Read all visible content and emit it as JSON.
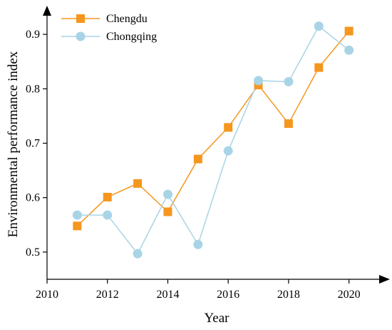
{
  "chart_data": {
    "type": "line",
    "title": "",
    "xlabel": "Year",
    "ylabel": "Environmental performance index",
    "xlim": [
      2010,
      2021
    ],
    "ylim": [
      0.45,
      0.95
    ],
    "xticks": [
      2010,
      2012,
      2014,
      2016,
      2018,
      2020
    ],
    "yticks": [
      0.5,
      0.6,
      0.7,
      0.8,
      0.9
    ],
    "xtick_labels": [
      "2010",
      "2012",
      "2014",
      "2016",
      "2018",
      "2020"
    ],
    "ytick_labels": [
      "0.5",
      "0.6",
      "0.7",
      "0.8",
      "0.9"
    ],
    "grid": false,
    "legend_position": "top-left",
    "x": [
      2011,
      2012,
      2013,
      2014,
      2015,
      2016,
      2017,
      2018,
      2019,
      2020
    ],
    "series": [
      {
        "name": "Chengdu",
        "color": "#f5961e",
        "marker": "square",
        "values": [
          0.548,
          0.601,
          0.626,
          0.574,
          0.671,
          0.729,
          0.807,
          0.736,
          0.839,
          0.906
        ]
      },
      {
        "name": "Chongqing",
        "color": "#a8d4e6",
        "marker": "circle",
        "values": [
          0.568,
          0.568,
          0.497,
          0.606,
          0.514,
          0.686,
          0.815,
          0.813,
          0.915,
          0.871
        ]
      }
    ]
  }
}
